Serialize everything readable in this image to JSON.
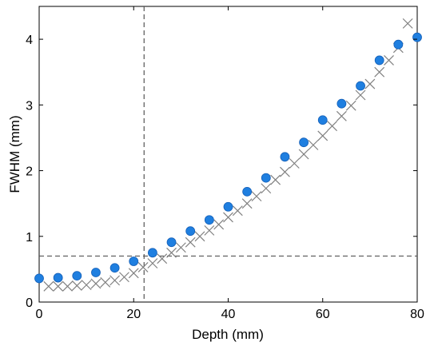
{
  "chart_data": {
    "type": "scatter",
    "xlabel": "Depth (mm)",
    "ylabel": "FWHM (mm)",
    "xlim": [
      0,
      80
    ],
    "ylim": [
      0,
      4.5
    ],
    "xticks": [
      0,
      20,
      40,
      60,
      80
    ],
    "xtick_labels": [
      "0",
      "20",
      "40",
      "60",
      "80"
    ],
    "yticks": [
      0,
      1,
      2,
      3,
      4
    ],
    "ytick_labels": [
      "0",
      "1",
      "2",
      "3",
      "4"
    ],
    "grid": false,
    "series": [
      {
        "marker": "circle",
        "color": "#1f7fe0",
        "x": [
          0,
          4,
          8,
          12,
          16,
          20,
          24,
          28,
          32,
          36,
          40,
          44,
          48,
          52,
          56,
          60,
          64,
          68,
          72,
          76,
          80
        ],
        "y": [
          0.36,
          0.37,
          0.4,
          0.45,
          0.52,
          0.62,
          0.75,
          0.91,
          1.08,
          1.25,
          1.45,
          1.68,
          1.89,
          2.21,
          2.43,
          2.77,
          3.02,
          3.29,
          3.68,
          3.92,
          4.03
        ]
      },
      {
        "marker": "x",
        "color": "#808080",
        "x": [
          2,
          4,
          6,
          8,
          10,
          12,
          14,
          16,
          18,
          20,
          22,
          24,
          26,
          28,
          30,
          32,
          34,
          36,
          38,
          40,
          42,
          44,
          46,
          48,
          50,
          52,
          54,
          56,
          58,
          60,
          62,
          64,
          66,
          68,
          70,
          72,
          74,
          76,
          78
        ],
        "y": [
          0.24,
          0.24,
          0.24,
          0.25,
          0.26,
          0.28,
          0.3,
          0.33,
          0.38,
          0.44,
          0.53,
          0.59,
          0.66,
          0.75,
          0.83,
          0.91,
          1.0,
          1.09,
          1.18,
          1.29,
          1.39,
          1.5,
          1.61,
          1.73,
          1.86,
          1.98,
          2.11,
          2.25,
          2.39,
          2.53,
          2.68,
          2.83,
          2.99,
          3.15,
          3.32,
          3.5,
          3.68,
          3.87,
          4.24
        ]
      }
    ],
    "reference_lines": {
      "vertical_x": 22.2,
      "horizontal_y": 0.7,
      "style": "dashed",
      "color": "#555555"
    }
  }
}
